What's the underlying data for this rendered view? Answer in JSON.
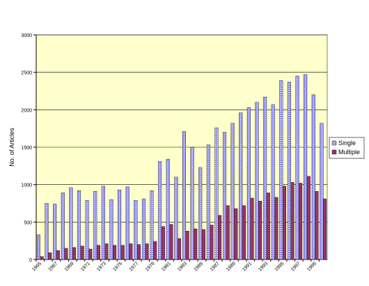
{
  "chart_data": {
    "type": "bar",
    "ylabel": "No. of Articles",
    "categories": [
      "1965",
      null,
      "1967",
      null,
      "1969",
      null,
      "1971",
      null,
      "1973",
      null,
      "1975",
      null,
      "1977",
      null,
      "1979",
      null,
      "1981",
      null,
      "1983",
      null,
      "1985",
      null,
      "1987",
      null,
      "1989",
      null,
      "1991",
      null,
      "1993",
      null,
      "1995",
      null,
      "1997",
      null,
      "1999",
      null
    ],
    "series": [
      {
        "name": "Single",
        "color": "#9999ff",
        "values": [
          330,
          750,
          740,
          890,
          960,
          920,
          790,
          910,
          980,
          800,
          930,
          970,
          790,
          810,
          920,
          1310,
          1340,
          1100,
          1710,
          1500,
          1230,
          1530,
          1760,
          1700,
          1820,
          1960,
          2030,
          2100,
          2170,
          2070,
          2390,
          2370,
          2450,
          2470,
          2200,
          1820
        ]
      },
      {
        "name": "Multiple",
        "color": "#993366",
        "values": [
          40,
          90,
          120,
          150,
          160,
          180,
          140,
          190,
          210,
          190,
          190,
          210,
          200,
          210,
          240,
          440,
          470,
          280,
          380,
          410,
          400,
          460,
          590,
          720,
          680,
          720,
          820,
          780,
          890,
          830,
          980,
          1030,
          1020,
          1110,
          910,
          810
        ]
      }
    ],
    "ylim": [
      0,
      3000
    ],
    "yticks": [
      0,
      500,
      1000,
      1500,
      2000,
      2500,
      3000
    ],
    "grid": true,
    "legend": "right"
  }
}
